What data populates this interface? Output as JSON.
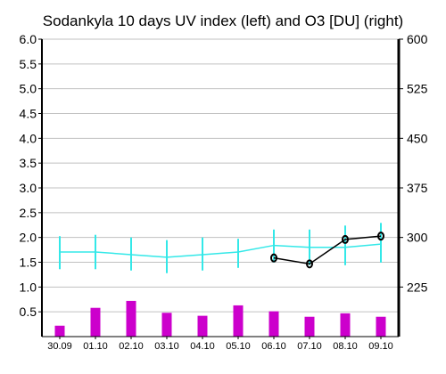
{
  "chart_data": {
    "type": "bar",
    "title": "Sodankyla 10 days UV index (left) and O3 [DU] (right)",
    "categories": [
      "30.09",
      "01.10",
      "02.10",
      "03.10",
      "04.10",
      "05.10",
      "06.10",
      "07.10",
      "08.10",
      "09.10"
    ],
    "left_axis": {
      "ylim": [
        0,
        6
      ],
      "ticks": [
        "6.0",
        "5.5",
        "5.0",
        "4.5",
        "4.0",
        "3.5",
        "3.0",
        "2.5",
        "2.0",
        "1.5",
        "1.0",
        "0.5"
      ],
      "tick_values": [
        6.0,
        5.5,
        5.0,
        4.5,
        4.0,
        3.5,
        3.0,
        2.5,
        2.0,
        1.5,
        1.0,
        0.5
      ]
    },
    "right_axis": {
      "ylim": [
        150,
        600
      ],
      "ticks": [
        "600",
        "525",
        "450",
        "375",
        "300",
        "225"
      ],
      "tick_values": [
        600,
        525,
        450,
        375,
        300,
        225
      ]
    },
    "grid": true,
    "series": [
      {
        "kind": "bar",
        "axis": "left",
        "color": "#cc00cc",
        "values": [
          0.22,
          0.58,
          0.72,
          0.48,
          0.42,
          0.63,
          0.51,
          0.4,
          0.47,
          0.4
        ]
      },
      {
        "kind": "line-errorbar",
        "axis": "right",
        "color": "#33e8e8",
        "values": [
          278,
          278,
          274,
          270,
          274,
          278,
          288,
          285,
          285,
          290
        ],
        "err_low": [
          252,
          252,
          250,
          246,
          250,
          254,
          262,
          258,
          258,
          262
        ],
        "err_high": [
          302,
          304,
          300,
          296,
          300,
          298,
          312,
          312,
          318,
          322
        ]
      },
      {
        "kind": "line-marker",
        "axis": "right",
        "color": "#000000",
        "values": [
          null,
          null,
          null,
          null,
          null,
          null,
          269,
          260,
          297,
          302
        ]
      }
    ]
  }
}
